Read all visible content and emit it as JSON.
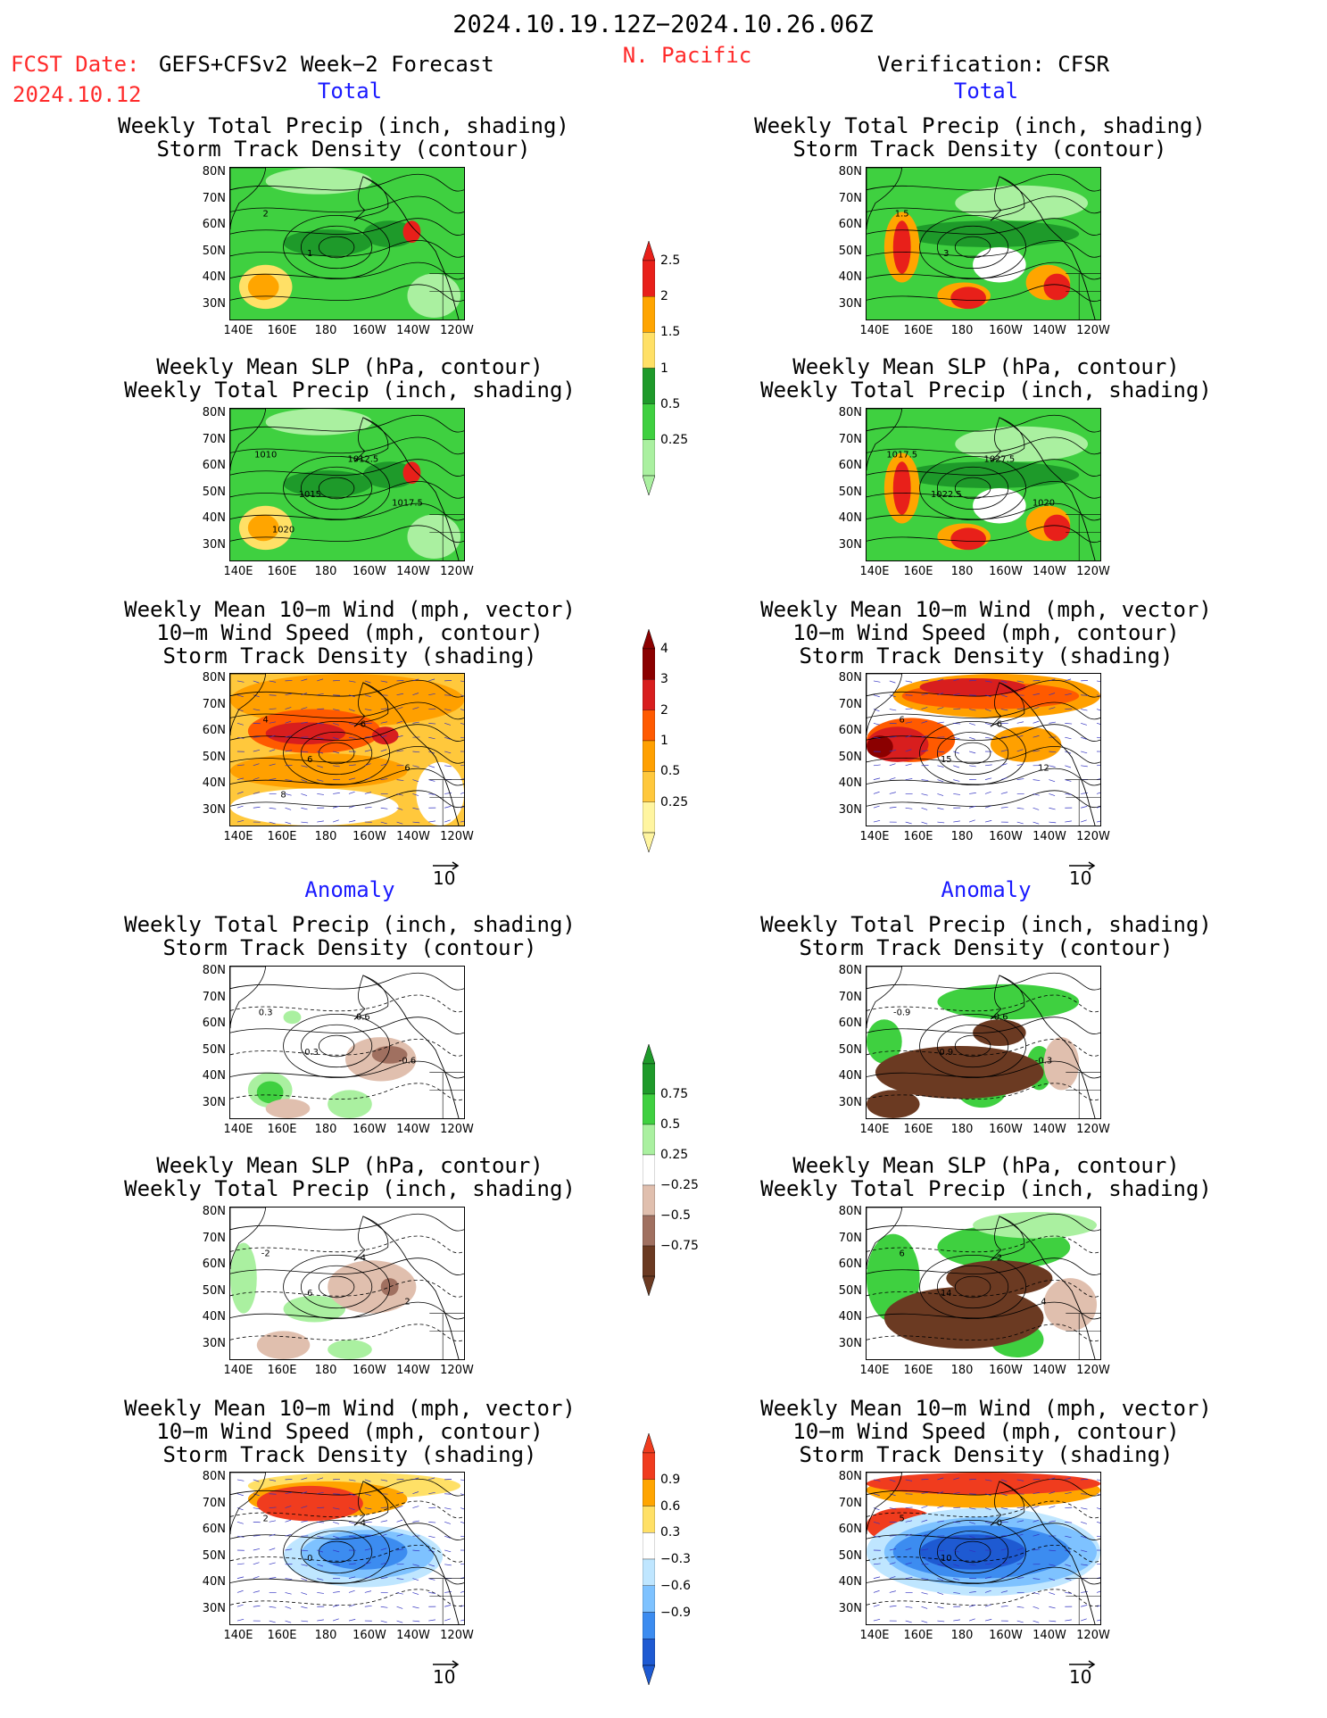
{
  "header": {
    "period": "2024.10.19.12Z−2024.10.26.06Z",
    "region": "N. Pacific",
    "fcst_label": "FCST Date:",
    "fcst_model": "GEFS+CFSv2 Week−2 Forecast",
    "fcst_date": "2024.10.12",
    "verification": "Verification: CFSR",
    "total": "Total",
    "anomaly": "Anomaly"
  },
  "titles": {
    "precip_storm": [
      "Weekly Total Precip (inch, shading)",
      "Storm Track Density (contour)"
    ],
    "slp_precip": [
      "Weekly Mean SLP (hPa, contour)",
      "Weekly Total Precip (inch, shading)"
    ],
    "wind_storm": [
      "Weekly Mean 10−m Wind (mph, vector)",
      "10−m Wind Speed (mph, contour)",
      "Storm Track Density (shading)"
    ]
  },
  "axes": {
    "lat": [
      "80N",
      "70N",
      "60N",
      "50N",
      "40N",
      "30N"
    ],
    "lon": [
      "140E",
      "160E",
      "180",
      "160W",
      "140W",
      "120W"
    ]
  },
  "vector_ref": "10",
  "contour_labels": {
    "fc_precip": [
      "2",
      "1"
    ],
    "vf_precip": [
      "1.5",
      "3"
    ],
    "fc_slp": [
      "1010",
      "1015",
      "1012.5",
      "1017.5",
      "1020"
    ],
    "vf_slp": [
      "1017.5",
      "1022.5",
      "1027.5",
      "1020"
    ],
    "fc_wind": [
      "4",
      "6",
      "6",
      "6",
      "8"
    ],
    "vf_wind": [
      "6",
      "15",
      "6",
      "12"
    ],
    "fc_aprecip": [
      "0.3",
      "-0.3",
      "0.6",
      "-0.6"
    ],
    "vf_aprecip": [
      "-0.9",
      "0.9",
      "-0.6",
      "-0.3"
    ],
    "fc_aslp": [
      "-2",
      "6",
      "4",
      "2"
    ],
    "vf_aslp": [
      "6",
      "14",
      "2",
      "4"
    ],
    "fc_awind": [
      "2",
      "0",
      "4"
    ],
    "vf_awind": [
      "5",
      "10",
      "0"
    ]
  },
  "colorbars": {
    "precip": {
      "labels": [
        "2.5",
        "2",
        "1.5",
        "1",
        "0.5",
        "0.25"
      ],
      "colors": [
        "#e8201a",
        "#ffa500",
        "#ffe066",
        "#1e9a2a",
        "#3fd040",
        "#aaf0a0"
      ]
    },
    "storm": {
      "labels": [
        "4",
        "3",
        "2",
        "1",
        "0.5",
        "0.25"
      ],
      "colors": [
        "#8b0000",
        "#d81e1e",
        "#ff5a00",
        "#ffa000",
        "#ffc83c",
        "#fff5a0"
      ]
    },
    "aprecip": {
      "labels": [
        "0.75",
        "0.5",
        "0.25",
        "−0.25",
        "−0.5",
        "−0.75"
      ],
      "colors": [
        "#1e9a2a",
        "#3fd040",
        "#aaf0a0",
        "#ffffff",
        "#e0bfae",
        "#a07060",
        "#6b3a22"
      ]
    },
    "astorm": {
      "labels": [
        "0.9",
        "0.6",
        "0.3",
        "−0.3",
        "−0.6",
        "−0.9"
      ],
      "colors": [
        "#f03c1e",
        "#ffa500",
        "#ffe066",
        "#ffffff",
        "#bfe6ff",
        "#7ec2ff",
        "#3c8cf0",
        "#1e5ad2"
      ]
    }
  }
}
